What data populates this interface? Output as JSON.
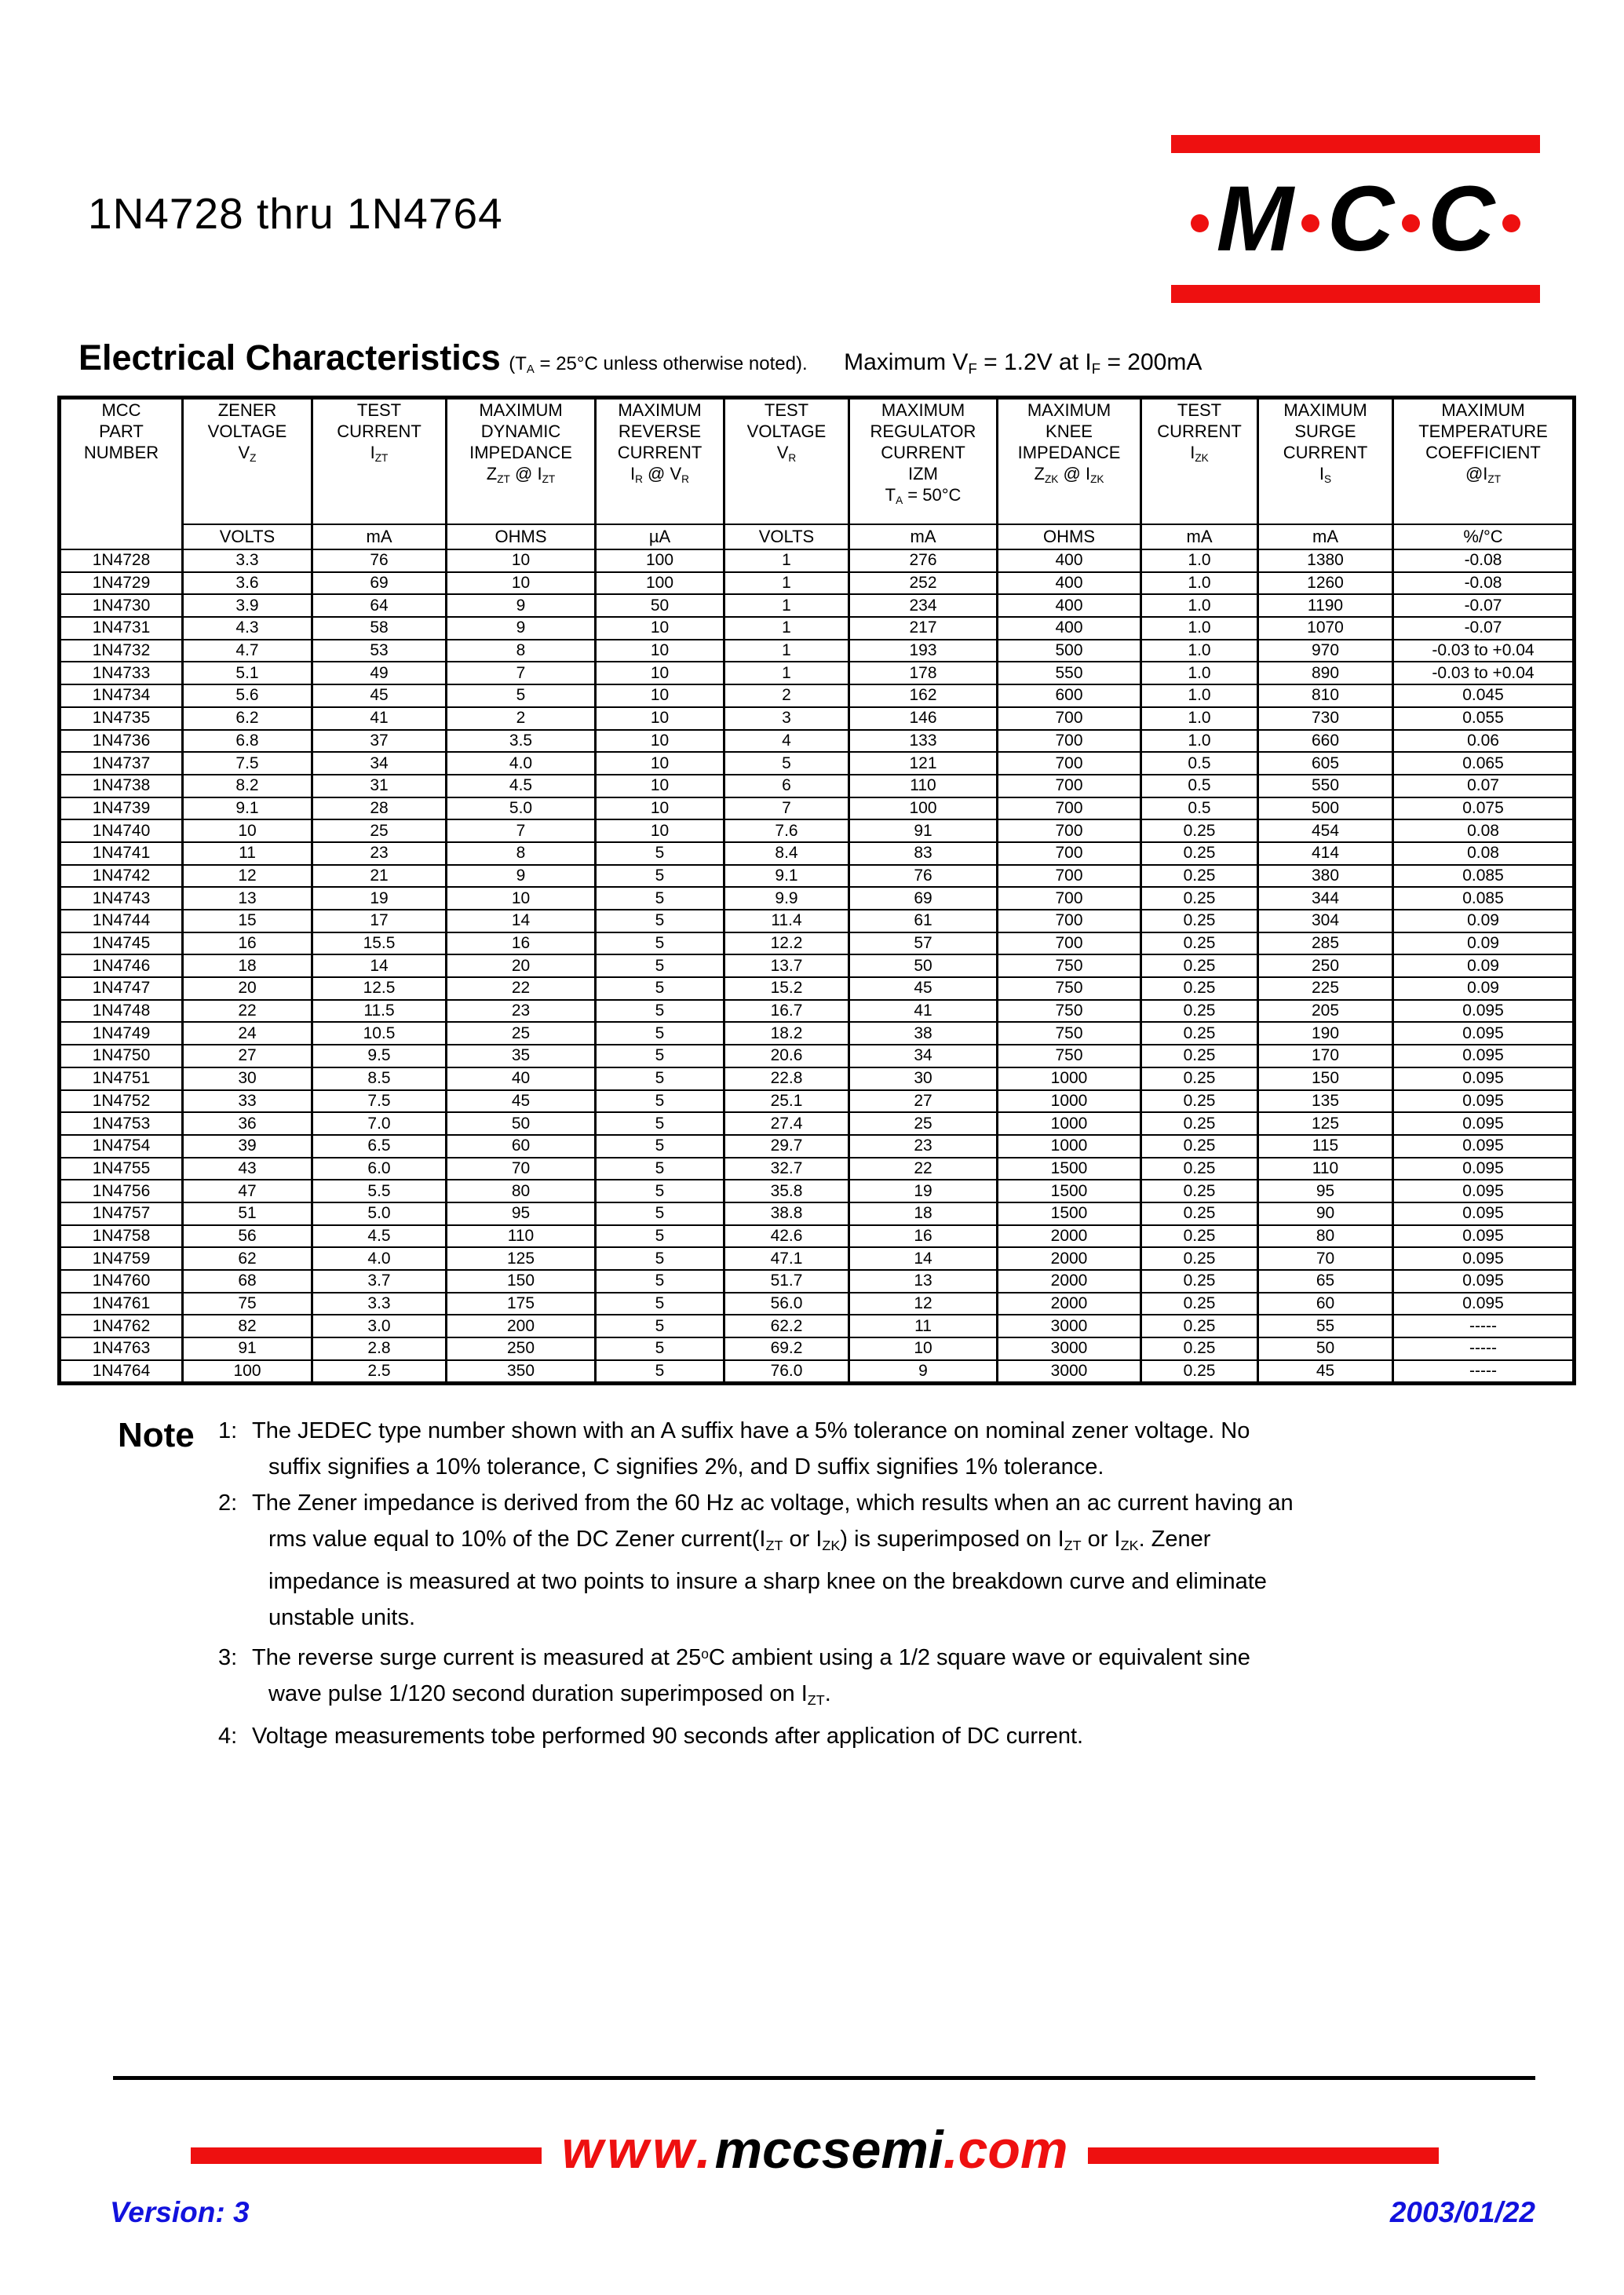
{
  "colors": {
    "brand_red": "#ee1010",
    "footer_blue": "#1212dd"
  },
  "page": {
    "title": "1N4728 thru 1N4764",
    "logo": {
      "letters": "MCC"
    }
  },
  "section": {
    "heading": "Electrical Characteristics",
    "condition": "(T~A~ = 25°C unless otherwise noted).",
    "max_note": "Maximum V~F~ = 1.2V at I~F~ = 200mA"
  },
  "table": {
    "columns": [
      {
        "header": "MCC\nPART\nNUMBER",
        "unit": ""
      },
      {
        "header": "ZENER\nVOLTAGE\nV~Z~",
        "unit": "VOLTS"
      },
      {
        "header": "TEST\nCURRENT\nI~ZT~",
        "unit": "mA"
      },
      {
        "header": "MAXIMUM\nDYNAMIC\nIMPEDANCE\nZ~ZT~ @ I~ZT~",
        "unit": "OHMS"
      },
      {
        "header": "MAXIMUM\nREVERSE\nCURRENT\nI~R~ @ V~R~",
        "unit": "µA"
      },
      {
        "header": "TEST\nVOLTAGE\nV~R~",
        "unit": "VOLTS"
      },
      {
        "header": "MAXIMUM\nREGULATOR\nCURRENT\nIZM\nT~A~ = 50°C",
        "unit": "mA"
      },
      {
        "header": "MAXIMUM\nKNEE\nIMPEDANCE\nZ~ZK~ @ I~ZK~",
        "unit": "OHMS"
      },
      {
        "header": "TEST\nCURRENT\nI~ZK~",
        "unit": "mA"
      },
      {
        "header": "MAXIMUM\nSURGE\nCURRENT\nI~S~",
        "unit": "mA"
      },
      {
        "header": "MAXIMUM\nTEMPERATURE\nCOEFFICIENT\n@I~ZT~",
        "unit": "%/°C"
      }
    ],
    "rows": [
      [
        "1N4728",
        "3.3",
        "76",
        "10",
        "100",
        "1",
        "276",
        "400",
        "1.0",
        "1380",
        "-0.08"
      ],
      [
        "1N4729",
        "3.6",
        "69",
        "10",
        "100",
        "1",
        "252",
        "400",
        "1.0",
        "1260",
        "-0.08"
      ],
      [
        "1N4730",
        "3.9",
        "64",
        "9",
        "50",
        "1",
        "234",
        "400",
        "1.0",
        "1190",
        "-0.07"
      ],
      [
        "1N4731",
        "4.3",
        "58",
        "9",
        "10",
        "1",
        "217",
        "400",
        "1.0",
        "1070",
        "-0.07"
      ],
      [
        "1N4732",
        "4.7",
        "53",
        "8",
        "10",
        "1",
        "193",
        "500",
        "1.0",
        "970",
        "-0.03 to +0.04"
      ],
      [
        "1N4733",
        "5.1",
        "49",
        "7",
        "10",
        "1",
        "178",
        "550",
        "1.0",
        "890",
        "-0.03 to +0.04"
      ],
      [
        "1N4734",
        "5.6",
        "45",
        "5",
        "10",
        "2",
        "162",
        "600",
        "1.0",
        "810",
        "0.045"
      ],
      [
        "1N4735",
        "6.2",
        "41",
        "2",
        "10",
        "3",
        "146",
        "700",
        "1.0",
        "730",
        "0.055"
      ],
      [
        "1N4736",
        "6.8",
        "37",
        "3.5",
        "10",
        "4",
        "133",
        "700",
        "1.0",
        "660",
        "0.06"
      ],
      [
        "1N4737",
        "7.5",
        "34",
        "4.0",
        "10",
        "5",
        "121",
        "700",
        "0.5",
        "605",
        "0.065"
      ],
      [
        "1N4738",
        "8.2",
        "31",
        "4.5",
        "10",
        "6",
        "110",
        "700",
        "0.5",
        "550",
        "0.07"
      ],
      [
        "1N4739",
        "9.1",
        "28",
        "5.0",
        "10",
        "7",
        "100",
        "700",
        "0.5",
        "500",
        "0.075"
      ],
      [
        "1N4740",
        "10",
        "25",
        "7",
        "10",
        "7.6",
        "91",
        "700",
        "0.25",
        "454",
        "0.08"
      ],
      [
        "1N4741",
        "11",
        "23",
        "8",
        "5",
        "8.4",
        "83",
        "700",
        "0.25",
        "414",
        "0.08"
      ],
      [
        "1N4742",
        "12",
        "21",
        "9",
        "5",
        "9.1",
        "76",
        "700",
        "0.25",
        "380",
        "0.085"
      ],
      [
        "1N4743",
        "13",
        "19",
        "10",
        "5",
        "9.9",
        "69",
        "700",
        "0.25",
        "344",
        "0.085"
      ],
      [
        "1N4744",
        "15",
        "17",
        "14",
        "5",
        "11.4",
        "61",
        "700",
        "0.25",
        "304",
        "0.09"
      ],
      [
        "1N4745",
        "16",
        "15.5",
        "16",
        "5",
        "12.2",
        "57",
        "700",
        "0.25",
        "285",
        "0.09"
      ],
      [
        "1N4746",
        "18",
        "14",
        "20",
        "5",
        "13.7",
        "50",
        "750",
        "0.25",
        "250",
        "0.09"
      ],
      [
        "1N4747",
        "20",
        "12.5",
        "22",
        "5",
        "15.2",
        "45",
        "750",
        "0.25",
        "225",
        "0.09"
      ],
      [
        "1N4748",
        "22",
        "11.5",
        "23",
        "5",
        "16.7",
        "41",
        "750",
        "0.25",
        "205",
        "0.095"
      ],
      [
        "1N4749",
        "24",
        "10.5",
        "25",
        "5",
        "18.2",
        "38",
        "750",
        "0.25",
        "190",
        "0.095"
      ],
      [
        "1N4750",
        "27",
        "9.5",
        "35",
        "5",
        "20.6",
        "34",
        "750",
        "0.25",
        "170",
        "0.095"
      ],
      [
        "1N4751",
        "30",
        "8.5",
        "40",
        "5",
        "22.8",
        "30",
        "1000",
        "0.25",
        "150",
        "0.095"
      ],
      [
        "1N4752",
        "33",
        "7.5",
        "45",
        "5",
        "25.1",
        "27",
        "1000",
        "0.25",
        "135",
        "0.095"
      ],
      [
        "1N4753",
        "36",
        "7.0",
        "50",
        "5",
        "27.4",
        "25",
        "1000",
        "0.25",
        "125",
        "0.095"
      ],
      [
        "1N4754",
        "39",
        "6.5",
        "60",
        "5",
        "29.7",
        "23",
        "1000",
        "0.25",
        "115",
        "0.095"
      ],
      [
        "1N4755",
        "43",
        "6.0",
        "70",
        "5",
        "32.7",
        "22",
        "1500",
        "0.25",
        "110",
        "0.095"
      ],
      [
        "1N4756",
        "47",
        "5.5",
        "80",
        "5",
        "35.8",
        "19",
        "1500",
        "0.25",
        "95",
        "0.095"
      ],
      [
        "1N4757",
        "51",
        "5.0",
        "95",
        "5",
        "38.8",
        "18",
        "1500",
        "0.25",
        "90",
        "0.095"
      ],
      [
        "1N4758",
        "56",
        "4.5",
        "110",
        "5",
        "42.6",
        "16",
        "2000",
        "0.25",
        "80",
        "0.095"
      ],
      [
        "1N4759",
        "62",
        "4.0",
        "125",
        "5",
        "47.1",
        "14",
        "2000",
        "0.25",
        "70",
        "0.095"
      ],
      [
        "1N4760",
        "68",
        "3.7",
        "150",
        "5",
        "51.7",
        "13",
        "2000",
        "0.25",
        "65",
        "0.095"
      ],
      [
        "1N4761",
        "75",
        "3.3",
        "175",
        "5",
        "56.0",
        "12",
        "2000",
        "0.25",
        "60",
        "0.095"
      ],
      [
        "1N4762",
        "82",
        "3.0",
        "200",
        "5",
        "62.2",
        "11",
        "3000",
        "0.25",
        "55",
        "-----"
      ],
      [
        "1N4763",
        "91",
        "2.8",
        "250",
        "5",
        "69.2",
        "10",
        "3000",
        "0.25",
        "50",
        "-----"
      ],
      [
        "1N4764",
        "100",
        "2.5",
        "350",
        "5",
        "76.0",
        "9",
        "3000",
        "0.25",
        "45",
        "-----"
      ]
    ]
  },
  "notes": {
    "label": "Note",
    "items": [
      {
        "num": "1:",
        "lines": [
          "The JEDEC type number shown with an A suffix have a 5% tolerance on nominal zener voltage. No",
          "suffix signifies a 10% tolerance, C signifies 2%, and D suffix signifies 1% tolerance."
        ]
      },
      {
        "num": "2:",
        "lines": [
          "The Zener impedance is derived from the 60 Hz ac voltage, which results when an ac current having an",
          "rms value equal to 10% of the DC Zener current(I~ZT~ or I~ZK~) is superimposed on I~ZT~ or I~ZK~. Zener",
          "impedance is measured at two points to insure a sharp knee on the breakdown curve and eliminate",
          "unstable units."
        ]
      },
      {
        "num": "3:",
        "lines": [
          "The reverse surge current is measured at 25^o^C ambient using a 1/2 square wave or equivalent sine",
          "wave pulse 1/120 second duration superimposed on I~ZT~."
        ]
      },
      {
        "num": "4:",
        "lines": [
          "Voltage measurements tobe performed 90 seconds after application of DC current."
        ]
      }
    ]
  },
  "footer": {
    "url_prefix": "www.",
    "url_domain": "mccsemi",
    "url_suffix": ".com",
    "version": "Version: 3",
    "date": "2003/01/22"
  }
}
